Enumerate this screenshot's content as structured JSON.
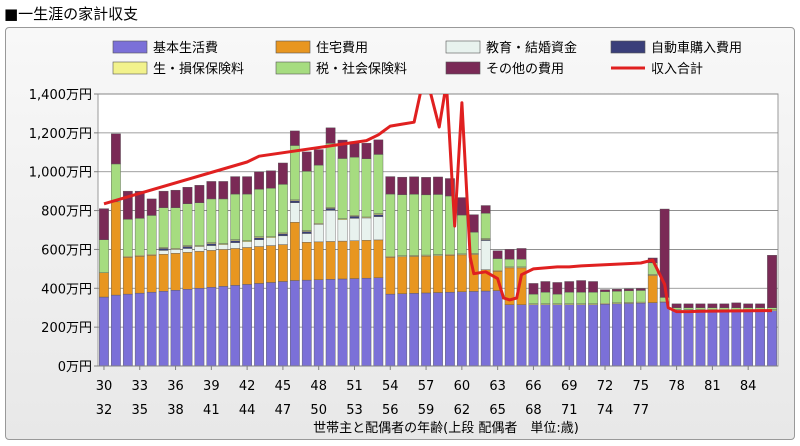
{
  "page": {
    "title": "■一生涯の家計収支"
  },
  "chart_data": {
    "type": "bar",
    "stacked": true,
    "yunit": "万円",
    "ylim": [
      0,
      1400
    ],
    "yticks": [
      0,
      200,
      400,
      600,
      800,
      1000,
      1200,
      1400
    ],
    "ytick_labels": [
      "0万円",
      "200万円",
      "400万円",
      "600万円",
      "800万円",
      "1,000万円",
      "1,200万円",
      "1,400万円"
    ],
    "xlabel": "世帯主と配偶者の年齢(上段 配偶者　単位:歳)",
    "x_age_head": [
      30,
      31,
      32,
      33,
      34,
      35,
      36,
      37,
      38,
      39,
      40,
      41,
      42,
      43,
      44,
      45,
      46,
      47,
      48,
      49,
      50,
      51,
      52,
      53,
      54,
      55,
      56,
      57,
      58,
      59,
      60,
      61,
      62,
      63,
      64,
      65,
      66,
      67,
      68,
      69,
      70,
      71,
      72,
      73,
      74,
      75,
      76,
      77,
      78,
      79,
      80,
      81,
      82,
      83,
      84,
      85,
      86
    ],
    "xtick_labels_top": [
      "30",
      "33",
      "36",
      "39",
      "42",
      "45",
      "48",
      "51",
      "54",
      "57",
      "60",
      "63",
      "66",
      "69",
      "72",
      "75",
      "78",
      "81",
      "84"
    ],
    "xtick_labels_bottom": [
      "32",
      "35",
      "38",
      "41",
      "44",
      "47",
      "50",
      "53",
      "56",
      "59",
      "62",
      "65",
      "68",
      "71",
      "74",
      "77"
    ],
    "series": [
      {
        "name": "基本生活費",
        "color": "#7b70d8",
        "values": [
          355,
          365,
          370,
          375,
          380,
          385,
          390,
          395,
          400,
          405,
          410,
          415,
          420,
          425,
          430,
          435,
          440,
          442,
          444,
          446,
          448,
          450,
          452,
          454,
          370,
          372,
          374,
          376,
          378,
          380,
          382,
          384,
          386,
          388,
          315,
          315,
          315,
          315,
          315,
          315,
          315,
          315,
          318,
          320,
          322,
          324,
          326,
          328,
          285,
          285,
          285,
          285,
          285,
          285,
          285,
          285,
          285
        ]
      },
      {
        "name": "住宅費用",
        "color": "#e89620",
        "values": [
          125,
          480,
          190,
          190,
          190,
          190,
          190,
          190,
          190,
          190,
          190,
          190,
          190,
          190,
          190,
          190,
          300,
          195,
          195,
          195,
          195,
          195,
          195,
          195,
          190,
          190,
          190,
          190,
          190,
          190,
          190,
          190,
          110,
          100,
          190,
          190,
          0,
          0,
          0,
          0,
          0,
          0,
          0,
          0,
          0,
          0,
          140,
          0,
          0,
          0,
          0,
          0,
          0,
          0,
          0,
          0,
          0
        ]
      },
      {
        "name": "教育・結婚資金",
        "color": "#e8f2ee",
        "values": [
          0,
          0,
          0,
          0,
          0,
          20,
          20,
          20,
          25,
          25,
          25,
          30,
          30,
          35,
          40,
          45,
          100,
          45,
          90,
          160,
          110,
          115,
          115,
          120,
          0,
          0,
          0,
          0,
          0,
          0,
          0,
          0,
          150,
          0,
          0,
          0,
          0,
          0,
          0,
          0,
          0,
          0,
          0,
          0,
          0,
          0,
          0,
          0,
          0,
          0,
          0,
          0,
          0,
          0,
          0,
          0,
          0
        ]
      },
      {
        "name": "自動車購入費用",
        "color": "#3a3f7a",
        "values": [
          0,
          0,
          0,
          0,
          0,
          10,
          0,
          10,
          0,
          10,
          0,
          10,
          0,
          10,
          0,
          10,
          10,
          10,
          0,
          10,
          0,
          10,
          0,
          10,
          0,
          0,
          0,
          0,
          0,
          0,
          0,
          0,
          5,
          0,
          0,
          0,
          0,
          0,
          0,
          0,
          0,
          0,
          0,
          0,
          0,
          0,
          0,
          0,
          0,
          0,
          0,
          0,
          0,
          0,
          0,
          0,
          0
        ]
      },
      {
        "name": "生・損保保険料",
        "color": "#f2f28c",
        "values": [
          0,
          0,
          5,
          5,
          5,
          5,
          5,
          5,
          5,
          5,
          5,
          5,
          5,
          5,
          5,
          5,
          5,
          5,
          5,
          5,
          5,
          5,
          5,
          5,
          5,
          5,
          5,
          5,
          5,
          5,
          5,
          5,
          5,
          5,
          5,
          5,
          5,
          5,
          5,
          5,
          5,
          5,
          5,
          5,
          5,
          5,
          5,
          5,
          5,
          5,
          5,
          5,
          5,
          5,
          5,
          5,
          5
        ]
      },
      {
        "name": "税・社会保険料",
        "color": "#a6dc80",
        "values": [
          170,
          195,
          190,
          190,
          200,
          205,
          210,
          215,
          220,
          225,
          230,
          235,
          240,
          245,
          250,
          250,
          280,
          305,
          300,
          330,
          310,
          300,
          300,
          305,
          320,
          315,
          315,
          310,
          310,
          300,
          200,
          110,
          130,
          60,
          40,
          40,
          50,
          60,
          50,
          60,
          60,
          60,
          60,
          60,
          60,
          60,
          60,
          20,
          10,
          10,
          10,
          10,
          10,
          10,
          10,
          10,
          10
        ]
      },
      {
        "name": "その他の費用",
        "color": "#7a2a56",
        "values": [
          160,
          155,
          145,
          140,
          85,
          85,
          90,
          85,
          90,
          90,
          90,
          90,
          90,
          90,
          90,
          110,
          75,
          100,
          80,
          80,
          95,
          80,
          80,
          75,
          90,
          90,
          90,
          90,
          90,
          90,
          90,
          90,
          40,
          40,
          50,
          55,
          55,
          55,
          60,
          55,
          60,
          55,
          10,
          10,
          10,
          10,
          25,
          455,
          20,
          20,
          20,
          20,
          20,
          25,
          20,
          20,
          270
        ]
      },
      {
        "name": "収入合計",
        "type": "line",
        "color": "#e02020",
        "x_index": [
          0,
          12,
          13,
          22,
          23,
          24,
          25,
          26,
          26.7,
          27.4,
          28.1,
          28.7,
          29.4,
          30,
          30.7,
          31,
          32,
          33,
          33.5,
          34,
          34.6,
          35,
          36,
          37,
          38,
          39,
          40,
          45,
          46,
          47,
          47.3,
          48,
          49,
          50,
          56
        ],
        "values": [
          835,
          1050,
          1080,
          1160,
          1190,
          1235,
          1245,
          1255,
          1455,
          1400,
          1230,
          1455,
          720,
          1355,
          560,
          475,
          485,
          450,
          350,
          340,
          350,
          470,
          500,
          505,
          510,
          510,
          515,
          530,
          545,
          420,
          300,
          280,
          280,
          282,
          285
        ]
      }
    ]
  }
}
